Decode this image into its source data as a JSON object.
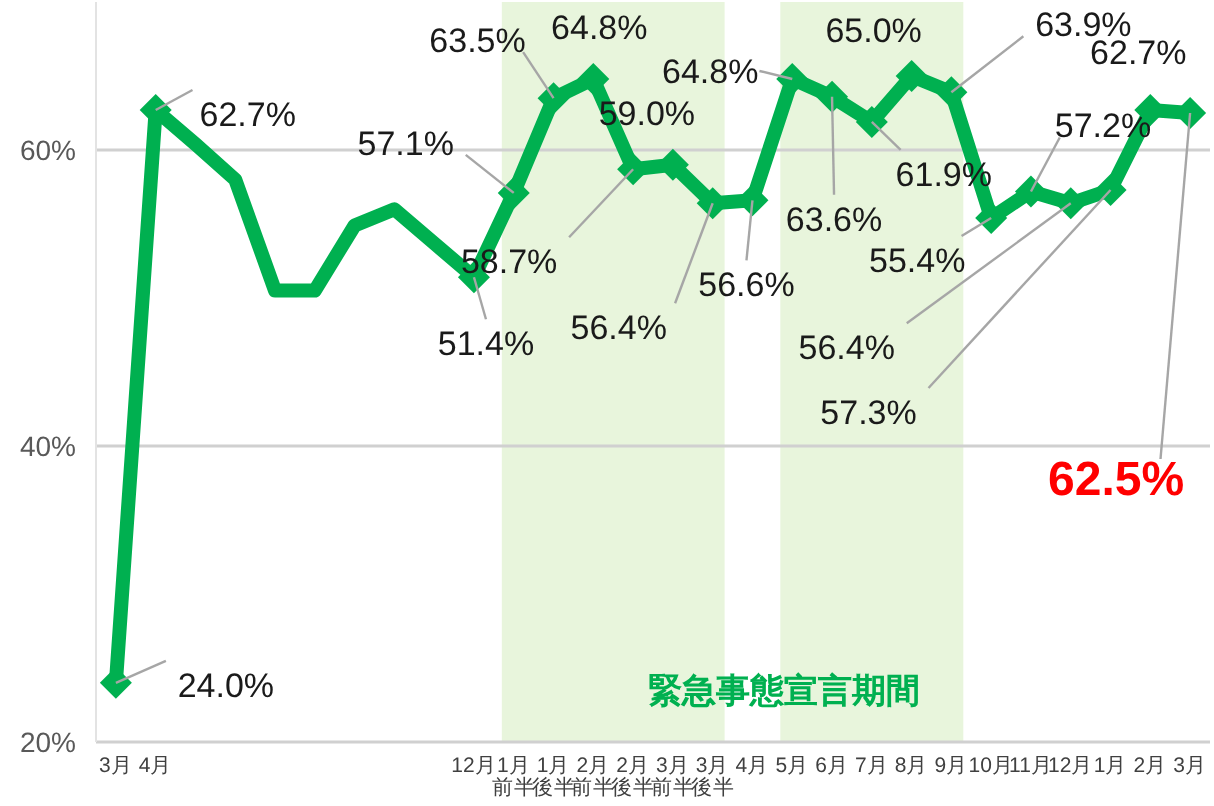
{
  "chart_data": {
    "type": "line",
    "categories": [
      "3月",
      "4月",
      null,
      null,
      null,
      null,
      null,
      null,
      null,
      "12月",
      "1月前半",
      "1月後半",
      "2月前半",
      "2月後半",
      "3月前半",
      "3月後半",
      "4月",
      "5月",
      "6月",
      "7月",
      "8月",
      "9月",
      "10月",
      "11月",
      "12月",
      "1月",
      "2月",
      "3月"
    ],
    "series": [
      {
        "color": "#00b050",
        "values": [
          24.0,
          62.7,
          60.4,
          58.0,
          50.5,
          50.5,
          54.9,
          56.0,
          53.7,
          51.4,
          57.1,
          63.5,
          64.8,
          58.7,
          59.0,
          56.4,
          56.6,
          64.8,
          63.6,
          61.9,
          65.0,
          63.9,
          55.4,
          57.2,
          56.4,
          57.3,
          62.7,
          62.5
        ],
        "value_labels": [
          "24.0%",
          "62.7%",
          null,
          null,
          null,
          null,
          null,
          null,
          null,
          "51.4%",
          "57.1%",
          "63.5%",
          "64.8%",
          "58.7%",
          "59.0%",
          "56.4%",
          "56.6%",
          "64.8%",
          "63.6%",
          "61.9%",
          "65.0%",
          "63.9%",
          "55.4%",
          "57.2%",
          "56.4%",
          "57.3%",
          "62.7%",
          "62.5%"
        ]
      }
    ],
    "ylim": [
      20,
      70
    ],
    "yticks": [
      {
        "value": 20,
        "label": "20%"
      },
      {
        "value": 40,
        "label": "40%"
      },
      {
        "value": 60,
        "label": "60%"
      }
    ],
    "grid": "y",
    "marker": "diamond",
    "line_style": "solid",
    "bands": [
      {
        "axis": "x",
        "from": "1月前半",
        "to": "3月後半",
        "color": "#e8f5dc"
      },
      {
        "axis": "x",
        "from": "5月",
        "to": "9月",
        "color": "#e8f5dc"
      }
    ],
    "annotations": [
      "緊急事態宣言期間"
    ]
  }
}
